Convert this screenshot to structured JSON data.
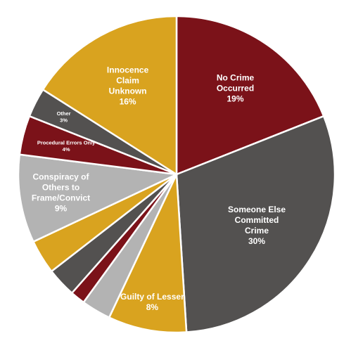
{
  "chart_data": {
    "type": "pie",
    "title": "",
    "slices": [
      {
        "label": "No Crime Occurred",
        "value": 19,
        "value_label": "19%",
        "color": "#7b1219",
        "label_lines": [
          "No Crime",
          "Occurred"
        ]
      },
      {
        "label": "Someone Else Committed Crime",
        "value": 30,
        "value_label": "30%",
        "color": "#535150",
        "label_lines": [
          "Someone Else",
          "Committed",
          "Crime"
        ]
      },
      {
        "label": "Guilty of Lesser",
        "value": 8,
        "value_label": "8%",
        "color": "#d9a31f",
        "label_lines": [
          "Guilty of Lesser"
        ]
      },
      {
        "label": "",
        "value": 3,
        "value_label": "",
        "color": "#b3b3b3",
        "label_lines": []
      },
      {
        "label": "",
        "value": 1.5,
        "value_label": "",
        "color": "#7b1219",
        "label_lines": []
      },
      {
        "label": "",
        "value": 3,
        "value_label": "",
        "color": "#535150",
        "label_lines": []
      },
      {
        "label": "",
        "value": 3.5,
        "value_label": "",
        "color": "#d9a31f",
        "label_lines": []
      },
      {
        "label": "Conspiracy of Others to Frame/Convict",
        "value": 9,
        "value_label": "9%",
        "color": "#b3b3b3",
        "label_lines": [
          "Conspiracy of",
          "Others to",
          "Frame/Convict"
        ]
      },
      {
        "label": "Procedural Errors Only",
        "value": 4,
        "value_label": "4%",
        "color": "#7b1219",
        "label_lines": [
          "Procedural Errors Only"
        ]
      },
      {
        "label": "Other",
        "value": 3,
        "value_label": "3%",
        "color": "#535150",
        "label_lines": [
          "Other"
        ]
      },
      {
        "label": "Innocence Claim Unknown",
        "value": 16,
        "value_label": "16%",
        "color": "#d9a31f",
        "label_lines": [
          "Innocence",
          "Claim",
          "Unknown"
        ]
      }
    ]
  }
}
